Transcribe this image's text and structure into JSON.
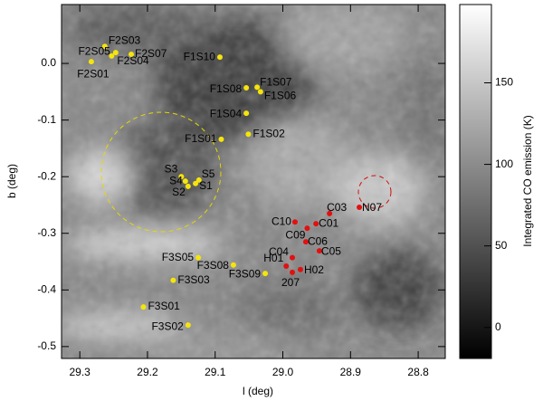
{
  "chart_data": {
    "type": "scatter",
    "xlabel": "l (deg)",
    "ylabel": "b (deg)",
    "xlim": [
      29.327,
      28.76
    ],
    "ylim": [
      -0.521,
      0.104
    ],
    "xticks": [
      29.3,
      29.2,
      29.1,
      {
        "value": 29.0,
        "label": "29.0"
      },
      28.9,
      28.8
    ],
    "yticks": [
      {
        "value": 0,
        "label": "0.0"
      },
      -0.1,
      -0.2,
      -0.3,
      -0.4,
      -0.5
    ],
    "series": [
      {
        "color": "#f5e50a",
        "labels": [
          "F2S03",
          "F2S05",
          "F2S04",
          "F2S07",
          "F2S01",
          "F1S10",
          "F1S08",
          "F1S07",
          "F1S06",
          "F1S04",
          "F1S01",
          "F1S02",
          "S3",
          "S4",
          "S5",
          "S2",
          "S1",
          "F3S05",
          "F3S08",
          "F3S03",
          "F3S09",
          "F3S01",
          "F3S02"
        ],
        "x": [
          29.263,
          29.247,
          29.253,
          29.224,
          29.283,
          29.093,
          29.054,
          29.038,
          29.033,
          29.054,
          29.091,
          29.051,
          29.15,
          29.144,
          29.124,
          29.14,
          29.129,
          29.125,
          29.073,
          29.162,
          29.026,
          29.206,
          29.14
        ],
        "y": [
          0.03,
          0.019,
          0.013,
          0.016,
          0.003,
          0.011,
          -0.043,
          -0.042,
          -0.05,
          -0.088,
          -0.134,
          -0.125,
          -0.2,
          -0.208,
          -0.206,
          -0.217,
          -0.212,
          -0.343,
          -0.356,
          -0.383,
          -0.371,
          -0.43,
          -0.462
        ]
      },
      {
        "color": "#e21010",
        "labels": [
          "N07",
          "C03",
          "C01",
          "C10",
          "C09",
          "C06",
          "C05",
          "C04",
          "H01",
          "H02",
          "207"
        ],
        "x": [
          28.887,
          28.931,
          28.951,
          28.982,
          28.964,
          28.966,
          28.946,
          28.986,
          28.995,
          28.974,
          28.986
        ],
        "y": [
          -0.254,
          -0.265,
          -0.283,
          -0.28,
          -0.291,
          -0.315,
          -0.331,
          -0.343,
          -0.358,
          -0.364,
          -0.369
        ]
      }
    ],
    "colorbar": {
      "label": "Integrated CO emission (K)",
      "lim": [
        -19,
        198
      ],
      "ticks": [
        0,
        50,
        100,
        150
      ]
    }
  }
}
